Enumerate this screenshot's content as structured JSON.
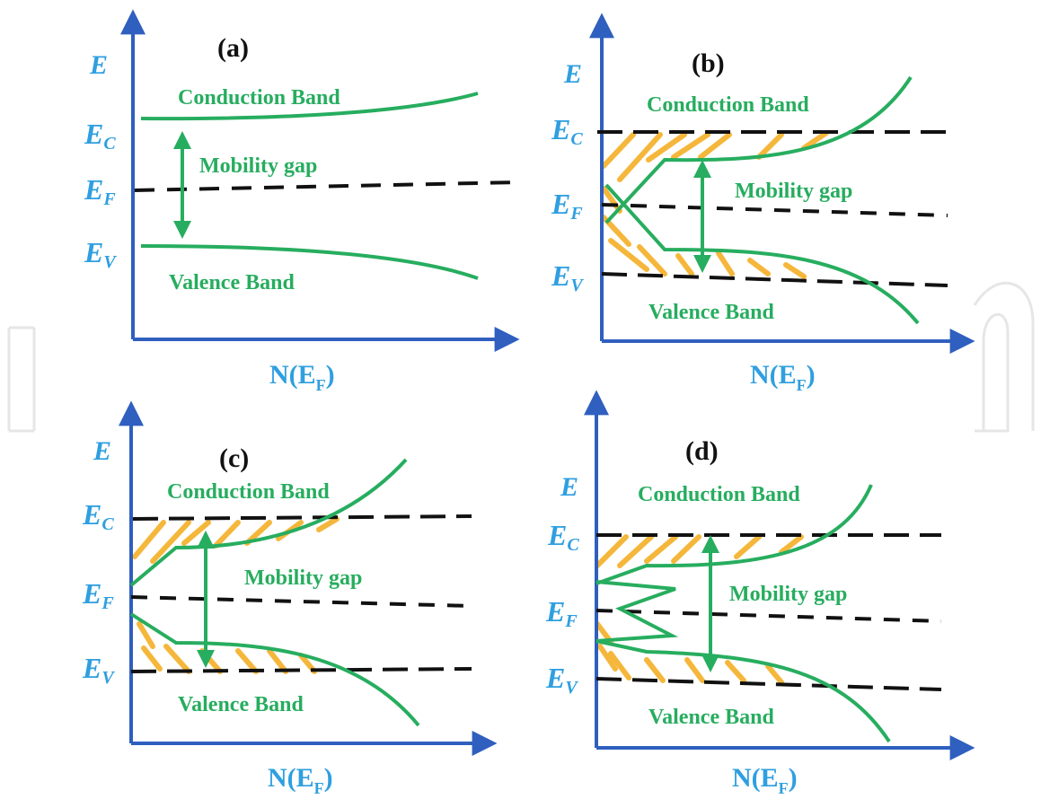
{
  "colors": {
    "axis": "#2f5fbf",
    "band": "#27ad5f",
    "level": "#111111",
    "hatch": "#f5b73b",
    "label": "#2f9fe0",
    "watermark": "#e8e8e8"
  },
  "panels": [
    {
      "label": "(a)",
      "e_axis": "E",
      "n_axis": "N(E",
      "n_axis_sub": "F",
      "n_axis_close": ")",
      "ec": {
        "main": "E",
        "sub": "C"
      },
      "ef": {
        "main": "E",
        "sub": "F"
      },
      "ev": {
        "main": "E",
        "sub": "V"
      },
      "conduction": "Conduction Band",
      "mobility": "Mobility gap",
      "valence": "Valence Band"
    },
    {
      "label": "(b)",
      "e_axis": "E",
      "n_axis": "N(E",
      "n_axis_sub": "F",
      "n_axis_close": ")",
      "ec": {
        "main": "E",
        "sub": "C"
      },
      "ef": {
        "main": "E",
        "sub": "F"
      },
      "ev": {
        "main": "E",
        "sub": "V"
      },
      "conduction": "Conduction Band",
      "mobility": "Mobility gap",
      "valence": "Valence Band"
    },
    {
      "label": "(c)",
      "e_axis": "E",
      "n_axis": "N(E",
      "n_axis_sub": "F",
      "n_axis_close": ")",
      "ec": {
        "main": "E",
        "sub": "C"
      },
      "ef": {
        "main": "E",
        "sub": "F"
      },
      "ev": {
        "main": "E",
        "sub": "V"
      },
      "conduction": "Conduction Band",
      "mobility": "Mobility gap",
      "valence": "Valence Band"
    },
    {
      "label": "(d)",
      "e_axis": "E",
      "n_axis": "N(E",
      "n_axis_sub": "F",
      "n_axis_close": ")",
      "ec": {
        "main": "E",
        "sub": "C"
      },
      "ef": {
        "main": "E",
        "sub": "F"
      },
      "ev": {
        "main": "E",
        "sub": "V"
      },
      "conduction": "Conduction Band",
      "mobility": "Mobility gap",
      "valence": "Valence Band"
    }
  ]
}
